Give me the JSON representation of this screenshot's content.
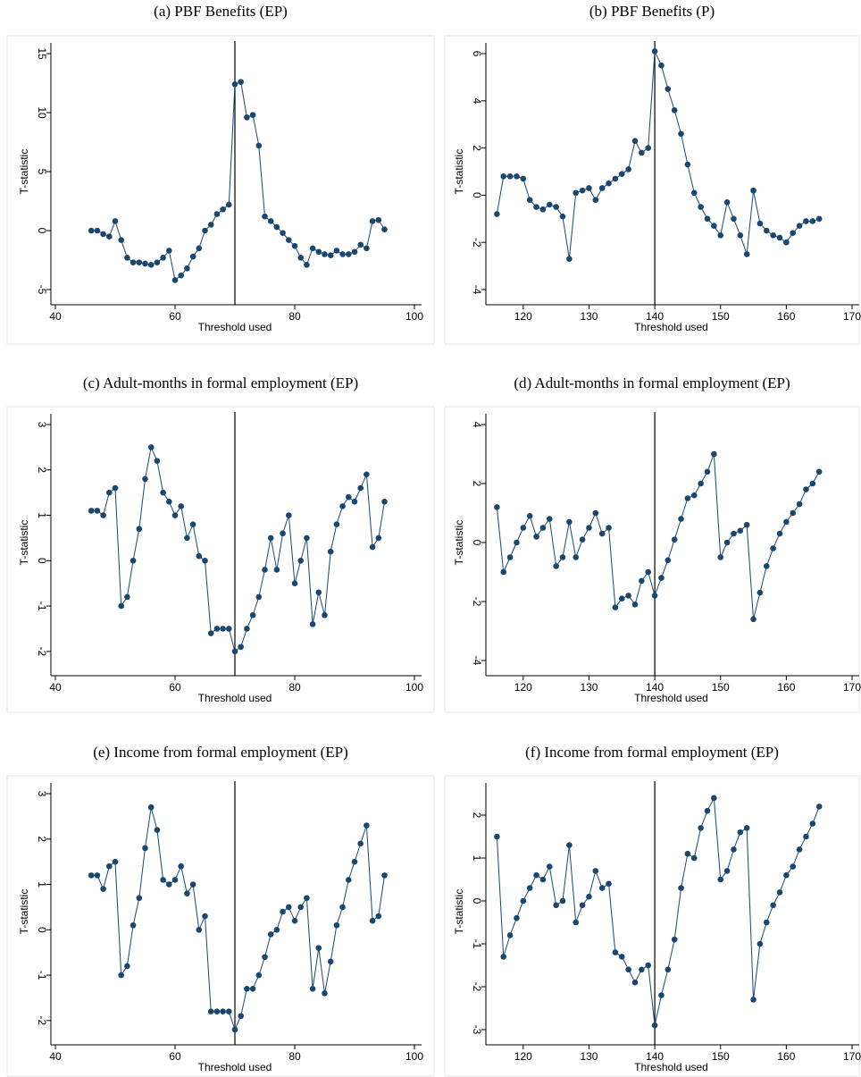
{
  "chart_data": [
    {
      "type": "line",
      "title": "(a) PBF Benefits (EP)",
      "xlabel": "Threshold used",
      "ylabel": "T-statistic",
      "color": "#1a476f",
      "vline": 70,
      "xlim": [
        40,
        100
      ],
      "ylim": [
        -5,
        15
      ],
      "xticks": [
        40,
        60,
        80,
        100
      ],
      "yticks": [
        -5,
        0,
        5,
        10,
        15
      ],
      "x": [
        46,
        47,
        48,
        49,
        50,
        51,
        52,
        53,
        54,
        55,
        56,
        57,
        58,
        59,
        60,
        61,
        62,
        63,
        64,
        65,
        66,
        67,
        68,
        69,
        70,
        71,
        72,
        73,
        74,
        75,
        76,
        77,
        78,
        79,
        80,
        81,
        82,
        83,
        84,
        85,
        86,
        87,
        88,
        89,
        90,
        91,
        92,
        93,
        94,
        95
      ],
      "values": [
        0,
        0,
        -0.3,
        -0.5,
        0.8,
        -0.8,
        -2.3,
        -2.7,
        -2.7,
        -2.8,
        -2.9,
        -2.7,
        -2.3,
        -1.7,
        -4.2,
        -3.8,
        -3.2,
        -2.2,
        -1.5,
        0,
        0.5,
        1.4,
        1.8,
        2.2,
        12.4,
        12.6,
        9.6,
        9.8,
        7.2,
        1.2,
        0.8,
        0.3,
        -0.2,
        -0.8,
        -1.3,
        -2.3,
        -2.9,
        -1.5,
        -1.8,
        -2.0,
        -2.1,
        -1.7,
        -2.0,
        -2.0,
        -1.8,
        -1.2,
        -1.5,
        0.8,
        0.9,
        0.1
      ]
    },
    {
      "type": "line",
      "title": "(b) PBF Benefits (P)",
      "xlabel": "Threshold used",
      "ylabel": "T-statistic",
      "color": "#1a476f",
      "vline": 140,
      "xlim": [
        115,
        170
      ],
      "ylim": [
        -4,
        6
      ],
      "xticks": [
        120,
        130,
        140,
        150,
        160,
        170
      ],
      "yticks": [
        -4,
        -2,
        0,
        2,
        4,
        6
      ],
      "x": [
        116,
        117,
        118,
        119,
        120,
        121,
        122,
        123,
        124,
        125,
        126,
        127,
        128,
        129,
        130,
        131,
        132,
        133,
        134,
        135,
        136,
        137,
        138,
        139,
        140,
        141,
        142,
        143,
        144,
        145,
        146,
        147,
        148,
        149,
        150,
        151,
        152,
        153,
        154,
        155,
        156,
        157,
        158,
        159,
        160,
        161,
        162,
        163,
        164,
        165
      ],
      "values": [
        -0.8,
        0.8,
        0.8,
        0.8,
        0.7,
        -0.2,
        -0.5,
        -0.6,
        -0.4,
        -0.5,
        -0.9,
        -2.7,
        0.1,
        0.2,
        0.3,
        -0.2,
        0.3,
        0.5,
        0.7,
        0.9,
        1.1,
        2.3,
        1.8,
        2.0,
        6.1,
        5.5,
        4.5,
        3.6,
        2.6,
        1.3,
        0.1,
        -0.5,
        -1.0,
        -1.3,
        -1.7,
        -0.3,
        -1.0,
        -1.7,
        -2.5,
        0.2,
        -1.2,
        -1.5,
        -1.7,
        -1.8,
        -2.0,
        -1.6,
        -1.3,
        -1.1,
        -1.1,
        -1.0
      ]
    },
    {
      "type": "line",
      "title": "(c) Adult-months in formal employment (EP)",
      "xlabel": "Threshold used",
      "ylabel": "T-statistic",
      "color": "#1a476f",
      "vline": 70,
      "xlim": [
        40,
        100
      ],
      "ylim": [
        -2.2,
        3
      ],
      "xticks": [
        40,
        60,
        80,
        100
      ],
      "yticks": [
        -2,
        -1,
        0,
        1,
        2,
        3
      ],
      "x": [
        46,
        47,
        48,
        49,
        50,
        51,
        52,
        53,
        54,
        55,
        56,
        57,
        58,
        59,
        60,
        61,
        62,
        63,
        64,
        65,
        66,
        67,
        68,
        69,
        70,
        71,
        72,
        73,
        74,
        75,
        76,
        77,
        78,
        79,
        80,
        81,
        82,
        83,
        84,
        85,
        86,
        87,
        88,
        89,
        90,
        91,
        92,
        93,
        94,
        95
      ],
      "values": [
        1.1,
        1.1,
        1.0,
        1.5,
        1.6,
        -1.0,
        -0.8,
        0.0,
        0.7,
        1.8,
        2.5,
        2.2,
        1.5,
        1.3,
        1.0,
        1.2,
        0.5,
        0.8,
        0.1,
        0.0,
        -1.6,
        -1.5,
        -1.5,
        -1.5,
        -2.0,
        -1.9,
        -1.5,
        -1.2,
        -0.8,
        -0.2,
        0.5,
        -0.2,
        0.6,
        1.0,
        -0.5,
        0.0,
        0.5,
        -1.4,
        -0.7,
        -1.2,
        0.2,
        0.8,
        1.2,
        1.4,
        1.3,
        1.6,
        1.9,
        0.3,
        0.5,
        1.3
      ]
    },
    {
      "type": "line",
      "title": "(d) Adult-months in formal employment (EP)",
      "xlabel": "Threshold used",
      "ylabel": "T-statistic",
      "color": "#1a476f",
      "vline": 140,
      "xlim": [
        115,
        170
      ],
      "ylim": [
        -4,
        4
      ],
      "xticks": [
        120,
        130,
        140,
        150,
        160,
        170
      ],
      "yticks": [
        -4,
        -2,
        0,
        2,
        4
      ],
      "x": [
        116,
        117,
        118,
        119,
        120,
        121,
        122,
        123,
        124,
        125,
        126,
        127,
        128,
        129,
        130,
        131,
        132,
        133,
        134,
        135,
        136,
        137,
        138,
        139,
        140,
        141,
        142,
        143,
        144,
        145,
        146,
        147,
        148,
        149,
        150,
        151,
        152,
        153,
        154,
        155,
        156,
        157,
        158,
        159,
        160,
        161,
        162,
        163,
        164,
        165
      ],
      "values": [
        1.2,
        -1.0,
        -0.5,
        0,
        0.5,
        0.9,
        0.2,
        0.5,
        0.8,
        -0.8,
        -0.5,
        0.7,
        -0.5,
        0.1,
        0.5,
        1.0,
        0.3,
        0.5,
        -2.2,
        -1.9,
        -1.8,
        -2.1,
        -1.3,
        -1.0,
        -1.8,
        -1.2,
        -0.6,
        0.1,
        0.8,
        1.5,
        1.6,
        2.0,
        2.4,
        3.0,
        -0.5,
        0,
        0.3,
        0.4,
        0.6,
        -2.6,
        -1.7,
        -0.8,
        -0.2,
        0.3,
        0.7,
        1.0,
        1.3,
        1.8,
        2.0,
        2.4
      ]
    },
    {
      "type": "line",
      "title": "(e) Income from formal employment (EP)",
      "xlabel": "Threshold used",
      "ylabel": "T-statistic",
      "color": "#1a476f",
      "vline": 70,
      "xlim": [
        40,
        100
      ],
      "ylim": [
        -2.2,
        3
      ],
      "xticks": [
        40,
        60,
        80,
        100
      ],
      "yticks": [
        -2,
        -1,
        0,
        1,
        2,
        3
      ],
      "x": [
        46,
        47,
        48,
        49,
        50,
        51,
        52,
        53,
        54,
        55,
        56,
        57,
        58,
        59,
        60,
        61,
        62,
        63,
        64,
        65,
        66,
        67,
        68,
        69,
        70,
        71,
        72,
        73,
        74,
        75,
        76,
        77,
        78,
        79,
        80,
        81,
        82,
        83,
        84,
        85,
        86,
        87,
        88,
        89,
        90,
        91,
        92,
        93,
        94,
        95
      ],
      "values": [
        1.2,
        1.2,
        0.9,
        1.4,
        1.5,
        -1.0,
        -0.8,
        0.1,
        0.7,
        1.8,
        2.7,
        2.2,
        1.1,
        1.0,
        1.1,
        1.4,
        0.8,
        1.0,
        0,
        0.3,
        -1.8,
        -1.8,
        -1.8,
        -1.8,
        -2.2,
        -1.9,
        -1.3,
        -1.3,
        -1.0,
        -0.6,
        -0.1,
        0,
        0.4,
        0.5,
        0.2,
        0.5,
        0.7,
        -1.3,
        -0.4,
        -1.4,
        -0.7,
        0.1,
        0.5,
        1.1,
        1.5,
        1.9,
        2.3,
        0.2,
        0.3,
        1.2
      ]
    },
    {
      "type": "line",
      "title": "(f) Income from formal employment (EP)",
      "xlabel": "Threshold used",
      "ylabel": "T-statistic",
      "color": "#1a476f",
      "vline": 140,
      "xlim": [
        115,
        170
      ],
      "ylim": [
        -3,
        2.5
      ],
      "xticks": [
        120,
        130,
        140,
        150,
        160,
        170
      ],
      "yticks": [
        -3,
        -2,
        -1,
        0,
        1,
        2
      ],
      "x": [
        116,
        117,
        118,
        119,
        120,
        121,
        122,
        123,
        124,
        125,
        126,
        127,
        128,
        129,
        130,
        131,
        132,
        133,
        134,
        135,
        136,
        137,
        138,
        139,
        140,
        141,
        142,
        143,
        144,
        145,
        146,
        147,
        148,
        149,
        150,
        151,
        152,
        153,
        154,
        155,
        156,
        157,
        158,
        159,
        160,
        161,
        162,
        163,
        164,
        165
      ],
      "values": [
        1.5,
        -1.3,
        -0.8,
        -0.4,
        0,
        0.3,
        0.6,
        0.5,
        0.8,
        -0.1,
        0.0,
        1.3,
        -0.5,
        -0.1,
        0.1,
        0.7,
        0.3,
        0.4,
        -1.2,
        -1.3,
        -1.6,
        -1.9,
        -1.6,
        -1.5,
        -2.9,
        -2.2,
        -1.6,
        -0.9,
        0.3,
        1.1,
        1.0,
        1.7,
        2.1,
        2.4,
        0.5,
        0.7,
        1.2,
        1.6,
        1.7,
        -2.3,
        -1.0,
        -0.5,
        -0.1,
        0.2,
        0.6,
        0.8,
        1.2,
        1.5,
        1.8,
        2.2
      ]
    }
  ]
}
